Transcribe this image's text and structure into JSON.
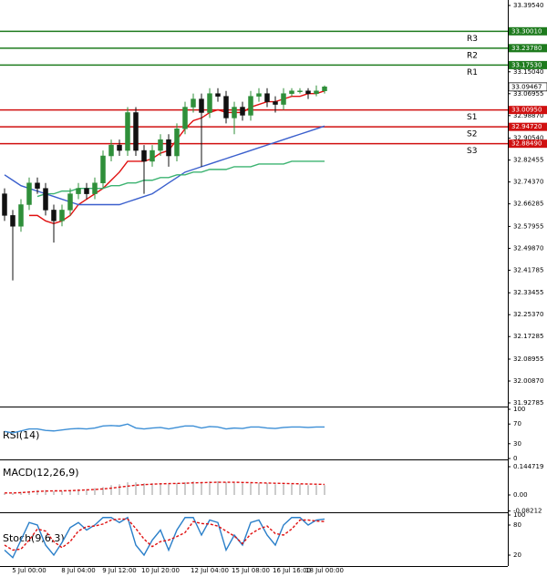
{
  "chart_data": [
    {
      "type": "candlestick",
      "categories": [
        null,
        null,
        null,
        "5 Jul 00:00",
        null,
        null,
        null,
        null,
        null,
        "8 Jul 04:00",
        null,
        null,
        null,
        null,
        "9 Jul 12:00",
        null,
        null,
        null,
        null,
        "10 Jul 20:00",
        null,
        null,
        null,
        null,
        null,
        "12 Jul 04:00",
        null,
        null,
        null,
        null,
        "15 Jul 08:00",
        null,
        null,
        null,
        null,
        "16 Jul 16:00",
        null,
        null,
        null,
        "18 Jul 00:00"
      ],
      "open": [
        32.7,
        32.62,
        32.58,
        32.66,
        32.74,
        32.72,
        32.64,
        32.6,
        32.64,
        32.7,
        32.72,
        32.7,
        32.74,
        32.84,
        32.88,
        32.86,
        33.0,
        32.86,
        32.82,
        32.86,
        32.9,
        32.84,
        32.94,
        33.02,
        33.05,
        33.0,
        33.07,
        33.06,
        32.98,
        33.02,
        32.99,
        33.06,
        33.07,
        33.04,
        33.03,
        33.07,
        33.08,
        33.08,
        33.07,
        33.08
      ],
      "high": [
        32.72,
        32.64,
        32.68,
        32.76,
        32.76,
        32.74,
        32.66,
        32.66,
        32.72,
        32.74,
        32.74,
        32.76,
        32.86,
        32.9,
        32.9,
        33.02,
        33.02,
        32.88,
        32.88,
        32.92,
        32.92,
        32.96,
        33.04,
        33.07,
        33.07,
        33.09,
        33.09,
        33.08,
        33.04,
        33.04,
        33.08,
        33.09,
        33.09,
        33.06,
        33.09,
        33.09,
        33.09,
        33.09,
        33.1,
        33.1
      ],
      "low": [
        32.6,
        32.38,
        32.56,
        32.64,
        32.7,
        32.62,
        32.52,
        32.58,
        32.62,
        32.68,
        32.68,
        32.68,
        32.72,
        32.82,
        32.84,
        32.84,
        32.84,
        32.7,
        32.8,
        32.84,
        32.8,
        32.82,
        32.92,
        33.0,
        32.8,
        32.98,
        33.04,
        32.96,
        32.92,
        32.97,
        32.97,
        33.04,
        33.02,
        33.0,
        33.01,
        33.06,
        33.07,
        33.05,
        33.06,
        33.07
      ],
      "close": [
        32.62,
        32.58,
        32.66,
        32.74,
        32.72,
        32.64,
        32.6,
        32.64,
        32.7,
        32.72,
        32.7,
        32.74,
        32.84,
        32.88,
        32.86,
        33.0,
        32.86,
        32.82,
        32.86,
        32.9,
        32.84,
        32.94,
        33.02,
        33.05,
        33.0,
        33.07,
        33.06,
        32.98,
        33.02,
        32.99,
        33.06,
        33.07,
        33.04,
        33.03,
        33.07,
        33.08,
        33.08,
        33.07,
        33.08,
        33.095
      ],
      "up_color": "#2f8f3a",
      "down_color": "#111111",
      "ylim": [
        31.9178,
        33.4156
      ],
      "yticks": [
        {
          "value": 33.3954,
          "label": "33.39540"
        },
        {
          "value": 33.1504,
          "label": "33.15040"
        },
        {
          "value": 33.06955,
          "label": "33.06955"
        },
        {
          "value": 32.9887,
          "label": "32.98870"
        },
        {
          "value": 32.9054,
          "label": "32.90540"
        },
        {
          "value": 32.82455,
          "label": "32.82455"
        },
        {
          "value": 32.7437,
          "label": "32.74370"
        },
        {
          "value": 32.66285,
          "label": "32.66285"
        },
        {
          "value": 32.57955,
          "label": "32.57955"
        },
        {
          "value": 32.4987,
          "label": "32.49870"
        },
        {
          "value": 32.41785,
          "label": "32.41785"
        },
        {
          "value": 32.33455,
          "label": "32.33455"
        },
        {
          "value": 32.2537,
          "label": "32.25370"
        },
        {
          "value": 32.17285,
          "label": "32.17285"
        },
        {
          "value": 32.08955,
          "label": "32.08955"
        },
        {
          "value": 32.0087,
          "label": "32.00870"
        },
        {
          "value": 31.92785,
          "label": "31.92785"
        }
      ],
      "series": [
        {
          "color": "#e01010",
          "values": [
            null,
            null,
            null,
            32.62,
            32.62,
            32.6,
            32.59,
            32.6,
            32.62,
            32.66,
            32.68,
            32.7,
            32.72,
            32.75,
            32.78,
            32.82,
            32.82,
            32.82,
            32.83,
            32.85,
            32.86,
            32.9,
            32.94,
            32.97,
            32.98,
            33.0,
            33.01,
            33.0,
            33.0,
            33.0,
            33.02,
            33.03,
            33.04,
            33.04,
            33.05,
            33.06,
            33.06,
            33.07,
            33.07,
            33.08
          ]
        },
        {
          "color": "#3a5fcd",
          "values": [
            32.77,
            32.75,
            32.73,
            32.72,
            32.71,
            32.7,
            32.69,
            32.68,
            32.67,
            32.66,
            32.66,
            32.66,
            32.66,
            32.66,
            32.66,
            32.67,
            32.68,
            32.69,
            32.7,
            32.72,
            32.74,
            32.76,
            32.78,
            32.79,
            32.8,
            32.81,
            32.82,
            32.83,
            32.84,
            32.85,
            32.86,
            32.87,
            32.88,
            32.89,
            32.9,
            32.91,
            32.92,
            32.93,
            32.94,
            32.95
          ]
        },
        {
          "color": "#3cb371",
          "values": [
            null,
            null,
            null,
            null,
            32.69,
            32.7,
            32.7,
            32.71,
            32.71,
            32.72,
            32.72,
            32.72,
            32.72,
            32.73,
            32.73,
            32.74,
            32.74,
            32.75,
            32.75,
            32.76,
            32.76,
            32.77,
            32.77,
            32.78,
            32.78,
            32.79,
            32.79,
            32.79,
            32.8,
            32.8,
            32.8,
            32.81,
            32.81,
            32.81,
            32.81,
            32.82,
            32.82,
            32.82,
            32.82,
            32.82
          ]
        }
      ],
      "levels": [
        {
          "name": "R3",
          "value": 33.3001,
          "label": "33.30010",
          "color": "#1e7b1e"
        },
        {
          "name": "R2",
          "value": 33.2378,
          "label": "33.23780",
          "color": "#1e7b1e"
        },
        {
          "name": "R1",
          "value": 33.1753,
          "label": "33.17530",
          "color": "#1e7b1e"
        },
        {
          "name": "S1",
          "value": 33.0095,
          "label": "33.00950",
          "color": "#d01010"
        },
        {
          "name": "S2",
          "value": 32.9472,
          "label": "32.94720",
          "color": "#d01010"
        },
        {
          "name": "S3",
          "value": 32.8849,
          "label": "32.88490",
          "color": "#d01010"
        }
      ],
      "last_price": {
        "value": 33.09467,
        "label": "33.09467"
      }
    },
    {
      "type": "line",
      "title": "RSI(14)",
      "ylim": [
        0,
        100
      ],
      "yticks": [
        0,
        30,
        70,
        100
      ],
      "series": [
        {
          "color": "#3d8fd6",
          "values": [
            55,
            52,
            56,
            60,
            60,
            57,
            56,
            58,
            60,
            61,
            60,
            62,
            66,
            67,
            66,
            70,
            62,
            60,
            62,
            63,
            60,
            63,
            66,
            66,
            62,
            65,
            64,
            60,
            62,
            61,
            64,
            64,
            62,
            61,
            63,
            64,
            64,
            63,
            64,
            64
          ]
        }
      ]
    },
    {
      "type": "bar",
      "title": "MACD(12,26,9)",
      "ylim": [
        -0.084,
        0.168
      ],
      "yticks": [
        -0.08212,
        {
          "value": 0,
          "label": "0.00"
        },
        0.144719
      ],
      "color": "#9a9a9a",
      "values": [
        0.01,
        0.01,
        0.015,
        0.02,
        0.025,
        0.025,
        0.02,
        0.02,
        0.025,
        0.03,
        0.03,
        0.035,
        0.04,
        0.05,
        0.055,
        0.065,
        0.065,
        0.06,
        0.06,
        0.06,
        0.06,
        0.06,
        0.065,
        0.07,
        0.065,
        0.07,
        0.07,
        0.065,
        0.065,
        0.06,
        0.06,
        0.06,
        0.06,
        0.055,
        0.055,
        0.055,
        0.055,
        0.05,
        0.05,
        0.05
      ],
      "series": [
        {
          "color": "#e01010",
          "values": [
            0.01,
            0.01,
            0.012,
            0.015,
            0.018,
            0.02,
            0.021,
            0.021,
            0.022,
            0.024,
            0.026,
            0.028,
            0.031,
            0.035,
            0.04,
            0.045,
            0.05,
            0.053,
            0.055,
            0.057,
            0.058,
            0.059,
            0.06,
            0.062,
            0.063,
            0.064,
            0.065,
            0.065,
            0.065,
            0.064,
            0.063,
            0.062,
            0.061,
            0.06,
            0.059,
            0.058,
            0.057,
            0.056,
            0.055,
            0.054
          ]
        }
      ]
    },
    {
      "type": "line",
      "title": "Stoch(9,6,3)",
      "ylim": [
        0,
        100
      ],
      "yticks": [
        20,
        80,
        100
      ],
      "series": [
        {
          "color": "#2a7fc9",
          "values": [
            30,
            15,
            50,
            85,
            80,
            40,
            20,
            45,
            75,
            85,
            70,
            80,
            95,
            95,
            85,
            95,
            40,
            20,
            50,
            70,
            30,
            70,
            95,
            95,
            60,
            90,
            85,
            30,
            60,
            40,
            85,
            90,
            60,
            40,
            80,
            95,
            95,
            80,
            90,
            92
          ]
        },
        {
          "color": "#e01010",
          "dashed": true,
          "values": [
            40,
            30,
            32,
            50,
            72,
            68,
            47,
            35,
            47,
            68,
            77,
            78,
            82,
            90,
            92,
            92,
            73,
            52,
            37,
            47,
            50,
            57,
            65,
            87,
            83,
            82,
            78,
            68,
            58,
            43,
            62,
            72,
            78,
            63,
            60,
            72,
            90,
            90,
            88,
            87
          ]
        }
      ]
    }
  ]
}
